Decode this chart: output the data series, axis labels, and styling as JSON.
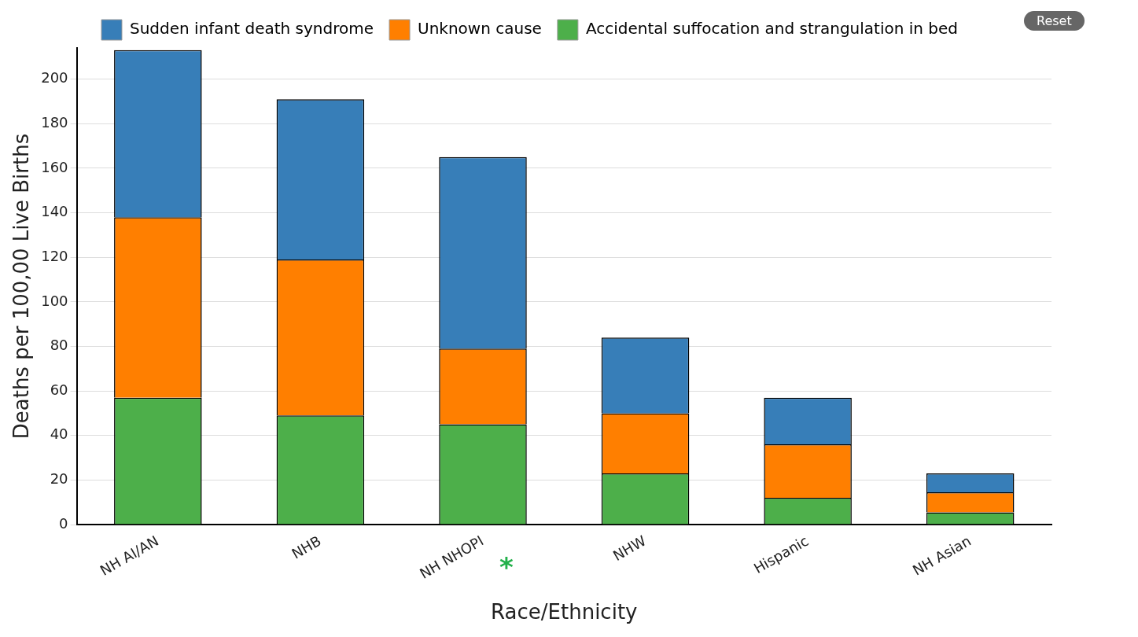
{
  "chart_data": {
    "type": "bar",
    "stacked": true,
    "xlabel": "Race/Ethnicity",
    "ylabel": "Deaths per 100,00 Live Births",
    "categories": [
      "NH AI/AN",
      "NHB",
      "NH NHOPI",
      "NHW",
      "Hispanic",
      "NH Asian"
    ],
    "series": [
      {
        "name": "Accidental suffocation and strangulation in bed",
        "color": "#4daf4a",
        "values": [
          57,
          49,
          45,
          23,
          12,
          5.5
        ]
      },
      {
        "name": "Unknown cause",
        "color": "#ff7f00",
        "values": [
          81,
          70,
          34,
          27,
          24,
          9
        ]
      },
      {
        "name": "Sudden infant death syndrome",
        "color": "#377eb8",
        "values": [
          75,
          72,
          86,
          34,
          21,
          8.5
        ]
      }
    ],
    "ylim": [
      0,
      214
    ],
    "yticks": [
      0,
      20,
      40,
      60,
      80,
      100,
      120,
      140,
      160,
      180,
      200
    ],
    "grid": "y",
    "legend": "top",
    "annotations": [
      "*",
      "Reset"
    ]
  }
}
